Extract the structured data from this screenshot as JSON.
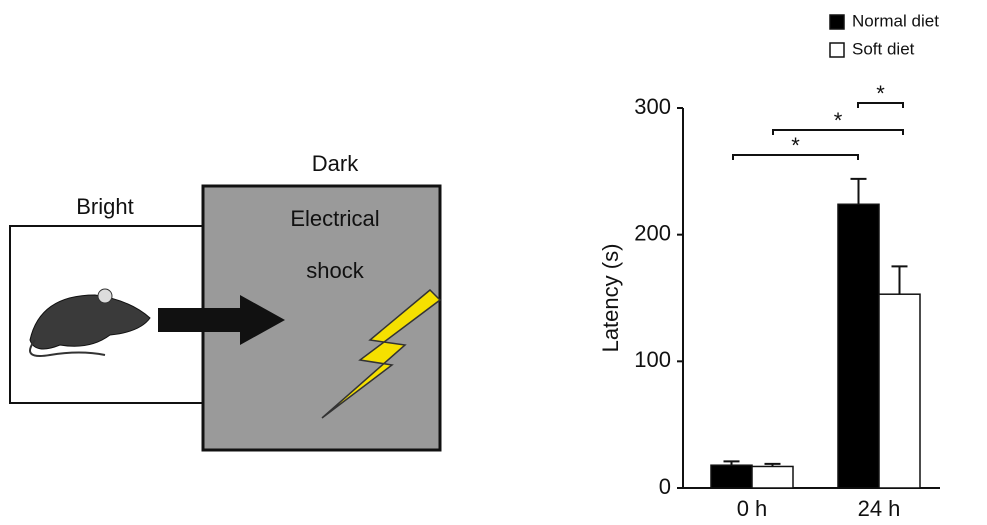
{
  "diagram": {
    "bright_label": "Bright",
    "dark_label": "Dark",
    "shock_label_1": "Electrical",
    "shock_label_2": "shock"
  },
  "chart_data": {
    "type": "bar",
    "y_label": "Latency (s)",
    "categories": [
      "0 h",
      "24 h"
    ],
    "series": [
      {
        "name": "Normal diet",
        "color": "#000000",
        "values": [
          18,
          224
        ],
        "errors": [
          3,
          20
        ]
      },
      {
        "name": "Soft diet",
        "color": "#ffffff",
        "values": [
          17,
          153
        ],
        "errors": [
          2,
          22
        ]
      }
    ],
    "ylim": [
      0,
      300
    ],
    "yticks": [
      0,
      100,
      200,
      300
    ],
    "annotations": [
      "*",
      "*",
      "*"
    ]
  }
}
